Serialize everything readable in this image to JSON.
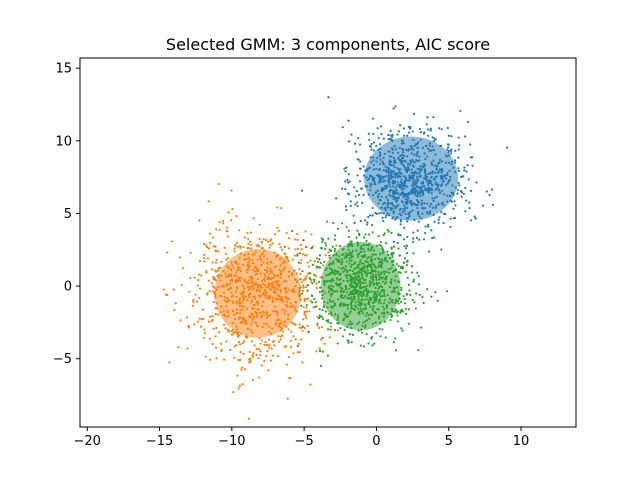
{
  "chart_data": {
    "type": "scatter",
    "title": "Selected GMM: 3 components, AIC score",
    "xlabel": "",
    "ylabel": "",
    "xlim": [
      -20.5,
      13.8
    ],
    "ylim": [
      -9.7,
      15.7
    ],
    "xticks": [
      -20,
      -15,
      -10,
      -5,
      0,
      5,
      10
    ],
    "xtick_labels": [
      "−20",
      "−15",
      "−10",
      "−5",
      "0",
      "5",
      "10"
    ],
    "yticks": [
      -5,
      0,
      5,
      10,
      15
    ],
    "ytick_labels": [
      "−5",
      "0",
      "5",
      "10",
      "15"
    ],
    "grid": false,
    "legend": "none",
    "series": [
      {
        "color": "#1f77b4",
        "center": [
          2.3,
          7.3
        ],
        "spread": [
          1.9,
          1.8
        ],
        "n_points": 900,
        "ellipse": {
          "center": [
            2.4,
            7.4
          ],
          "width": 6.5,
          "height": 5.8,
          "angle": 0
        }
      },
      {
        "color": "#ff7f0e",
        "center": [
          -8.2,
          -0.5
        ],
        "spread": [
          2.3,
          2.4
        ],
        "n_points": 900,
        "ellipse": {
          "center": [
            -8.2,
            -0.5
          ],
          "width": 6.0,
          "height": 6.1,
          "angle": 0
        }
      },
      {
        "color": "#2ca02c",
        "center": [
          -1.0,
          0.1
        ],
        "spread": [
          1.8,
          1.8
        ],
        "n_points": 900,
        "ellipse": {
          "center": [
            -1.1,
            0.0
          ],
          "width": 5.5,
          "height": 6.1,
          "angle": 0
        }
      }
    ]
  }
}
